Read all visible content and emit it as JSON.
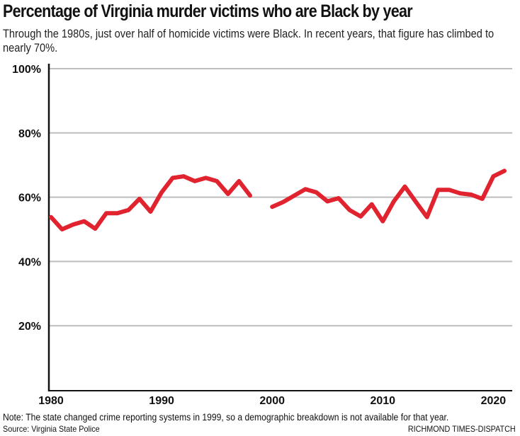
{
  "chart_data": {
    "type": "line",
    "title": "Percentage of Virginia murder victims who are Black by year",
    "subtitle": "Through the 1980s, just over half of homicide victims were Black. In recent years, that figure has climbed to nearly 70%.",
    "xlabel": "",
    "ylabel": "",
    "xlim": [
      1980,
      2021
    ],
    "ylim": [
      0,
      100
    ],
    "x_ticks": [
      1980,
      1990,
      2000,
      2010,
      2020
    ],
    "y_ticks": [
      "20%",
      "40%",
      "60%",
      "80%",
      "100%"
    ],
    "y_tick_values": [
      20,
      40,
      60,
      80,
      100
    ],
    "grid": "horizontal",
    "line_color": "#e0232e",
    "series": [
      {
        "segments": [
          {
            "x": [
              1980,
              1981,
              1982,
              1983,
              1984,
              1985,
              1986,
              1987,
              1988,
              1989,
              1990,
              1991,
              1992,
              1993,
              1994,
              1995,
              1996,
              1997,
              1998
            ],
            "y": [
              53.8,
              50.0,
              51.5,
              52.5,
              50.2,
              55.0,
              55.0,
              56.0,
              59.5,
              55.5,
              61.5,
              66.0,
              66.5,
              65.0,
              66.0,
              65.0,
              61.0,
              65.0,
              60.5
            ]
          },
          {
            "x": [
              2000,
              2001,
              2002,
              2003,
              2004,
              2005,
              2006,
              2007,
              2008,
              2009,
              2010,
              2011,
              2012,
              2013,
              2014,
              2015,
              2016,
              2017,
              2018,
              2019,
              2020,
              2021
            ],
            "y": [
              57.0,
              58.5,
              60.5,
              62.5,
              61.5,
              58.7,
              59.7,
              56.0,
              54.0,
              57.8,
              52.5,
              58.7,
              63.3,
              58.5,
              53.8,
              62.3,
              62.3,
              61.2,
              60.8,
              59.5,
              66.5,
              68.2
            ]
          }
        ]
      }
    ]
  },
  "footer": {
    "note": "Note: The state changed crime reporting systems in 1999, so a demographic breakdown is not available for that year.",
    "source": "Source: Virginia State Police",
    "credit": "RICHMOND TIMES-DISPATCH"
  }
}
